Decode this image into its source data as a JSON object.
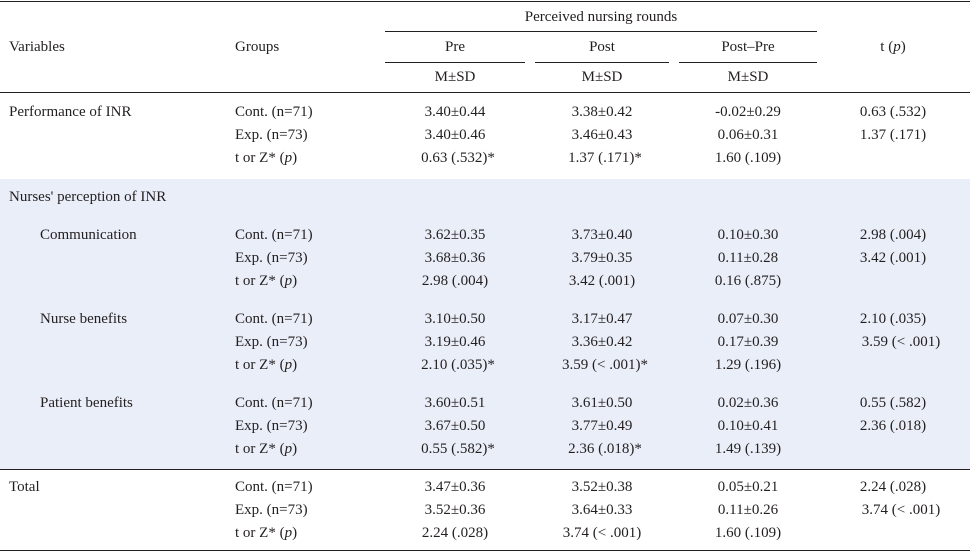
{
  "header": {
    "variables": "Variables",
    "groups": "Groups",
    "span_title": "Perceived nursing rounds",
    "pre": "Pre",
    "post": "Post",
    "diff": "Post–Pre",
    "msd": "M±SD",
    "t_label": "t (",
    "t_p": "p",
    "t_close": ")"
  },
  "test_label": {
    "prefix": "t or Z* (",
    "p": "p",
    "suffix": ")"
  },
  "sections": [
    {
      "label": "Performance of INR",
      "rows": {
        "cont": {
          "group": "Cont. (n=71)",
          "pre": "3.40±0.44",
          "post": "3.38±0.42",
          "diff": "-0.02±0.29",
          "t": "0.63 (.532)"
        },
        "exp": {
          "group": "Exp. (n=73)",
          "pre": "3.40±0.46",
          "post": "3.46±0.43",
          "diff": "0.06±0.31",
          "t": "1.37 (.171)"
        },
        "test": {
          "pre": "0.63 (.532)*",
          "post": "1.37 (.171)*",
          "diff": "1.60 (.109)"
        }
      }
    },
    {
      "label": "Nurses' perception of INR",
      "subsections": [
        {
          "label": "Communication",
          "rows": {
            "cont": {
              "group": "Cont. (n=71)",
              "pre": "3.62±0.35",
              "post": "3.73±0.40",
              "diff": "0.10±0.30",
              "t": "2.98 (.004)"
            },
            "exp": {
              "group": "Exp. (n=73)",
              "pre": "3.68±0.36",
              "post": "3.79±0.35",
              "diff": "0.11±0.28",
              "t": "3.42 (.001)"
            },
            "test": {
              "pre": "2.98 (.004)",
              "post": "3.42 (.001)",
              "diff": "0.16 (.875)"
            }
          }
        },
        {
          "label": "Nurse benefits",
          "rows": {
            "cont": {
              "group": "Cont. (n=71)",
              "pre": "3.10±0.50",
              "post": "3.17±0.47",
              "diff": "0.07±0.30",
              "t": "2.10 (.035)"
            },
            "exp": {
              "group": "Exp. (n=73)",
              "pre": "3.19±0.46",
              "post": "3.36±0.42",
              "diff": "0.17±0.39",
              "t": "3.59 (< .001)"
            },
            "test": {
              "pre": "2.10 (.035)*",
              "post": "3.59 (< .001)*",
              "diff": "1.29 (.196)"
            }
          }
        },
        {
          "label": "Patient benefits",
          "rows": {
            "cont": {
              "group": "Cont. (n=71)",
              "pre": "3.60±0.51",
              "post": "3.61±0.50",
              "diff": "0.02±0.36",
              "t": "0.55 (.582)"
            },
            "exp": {
              "group": "Exp. (n=73)",
              "pre": "3.67±0.50",
              "post": "3.77±0.49",
              "diff": "0.10±0.41",
              "t": "2.36 (.018)"
            },
            "test": {
              "pre": "0.55 (.582)*",
              "post": "2.36 (.018)*",
              "diff": "1.49 (.139)"
            }
          }
        }
      ]
    },
    {
      "label": "Total",
      "rows": {
        "cont": {
          "group": "Cont. (n=71)",
          "pre": "3.47±0.36",
          "post": "3.52±0.38",
          "diff": "0.05±0.21",
          "t": "2.24 (.028)"
        },
        "exp": {
          "group": "Exp. (n=73)",
          "pre": "3.52±0.36",
          "post": "3.64±0.33",
          "diff": "0.11±0.26",
          "t": "3.74 (< .001)"
        },
        "test": {
          "pre": "2.24 (.028)",
          "post": "3.74 (< .001)",
          "diff": "1.60 (.109)"
        }
      }
    }
  ]
}
